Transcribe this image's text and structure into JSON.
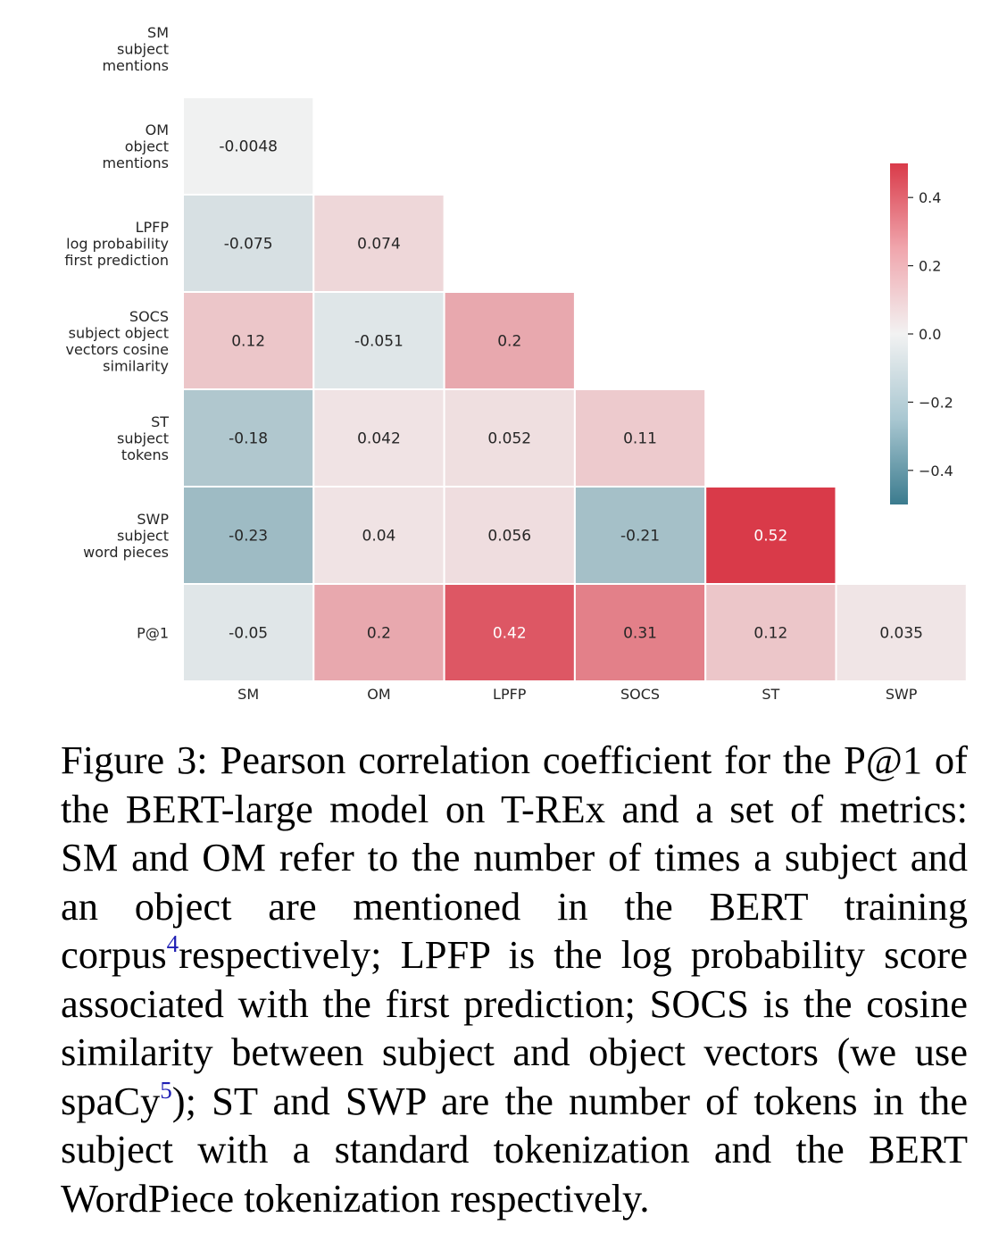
{
  "chart_data": {
    "type": "heatmap",
    "row_labels": [
      [
        "SM",
        "subject",
        "mentions"
      ],
      [
        "OM",
        "object",
        "mentions"
      ],
      [
        "LPFP",
        "log probability",
        "first prediction"
      ],
      [
        "SOCS",
        "subject object",
        "vectors cosine",
        "similarity"
      ],
      [
        "ST",
        "subject",
        "tokens"
      ],
      [
        "SWP",
        "subject",
        "word pieces"
      ],
      [
        "P@1"
      ]
    ],
    "col_labels": [
      "SM",
      "OM",
      "LPFP",
      "SOCS",
      "ST",
      "SWP"
    ],
    "cells": [
      [
        null,
        null,
        null,
        null,
        null,
        null
      ],
      [
        "-0.0048",
        null,
        null,
        null,
        null,
        null
      ],
      [
        "-0.075",
        "0.074",
        null,
        null,
        null,
        null
      ],
      [
        "0.12",
        "-0.051",
        "0.2",
        null,
        null,
        null
      ],
      [
        "-0.18",
        "0.042",
        "0.052",
        "0.11",
        null,
        null
      ],
      [
        "-0.23",
        "0.04",
        "0.056",
        "-0.21",
        "0.52",
        null
      ],
      [
        "-0.05",
        "0.2",
        "0.42",
        "0.31",
        "0.12",
        "0.035"
      ]
    ],
    "colorbar": {
      "range": [
        -0.5,
        0.5
      ],
      "ticks": [
        0.4,
        0.2,
        0.0,
        -0.2,
        -0.4
      ],
      "tick_labels": [
        "0.4",
        "0.2",
        "0.0",
        "−0.2",
        "−0.4"
      ],
      "colors": {
        "negative": "#3b7b8e",
        "center": "#f2f2f2",
        "positive": "#d93a49"
      }
    }
  },
  "caption": {
    "part1": "Figure 3: Pearson correlation coefficient for the P@1 of the BERT-large model on T-REx and a set of metrics: SM and OM refer to the number of times a subject and an object are mentioned in the BERT training corpus",
    "footnote1": "4",
    "part2": "respectively; LPFP is the log probability score associated with the first prediction; SOCS is the cosine similarity between subject and object vectors (we use spaCy",
    "footnote2": "5",
    "part3": "); ST and SWP are the number of tokens in the subject with a standard tokenization and the BERT WordPiece tokenization respectively."
  }
}
